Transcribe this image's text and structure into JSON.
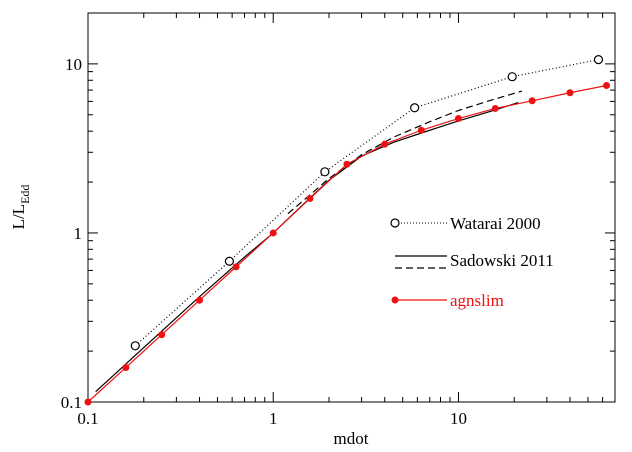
{
  "chart_data": {
    "type": "line",
    "title": "",
    "xlabel": "mdot",
    "ylabel": {
      "main": "L/L",
      "sub": "Edd"
    },
    "x_scale": "log",
    "y_scale": "log",
    "xlim": [
      0.1,
      70
    ],
    "ylim": [
      0.1,
      20
    ],
    "x_ticks": [
      {
        "value": 0.1,
        "label": "0.1"
      },
      {
        "value": 1,
        "label": "1"
      },
      {
        "value": 10,
        "label": "10"
      }
    ],
    "y_ticks": [
      {
        "value": 0.1,
        "label": "0.1"
      },
      {
        "value": 1,
        "label": "1"
      },
      {
        "value": 10,
        "label": "10"
      }
    ],
    "grid": false,
    "legend_position": "right-middle",
    "series": [
      {
        "name": "Watarai 2000",
        "color": "#000000",
        "line_style": "dotted",
        "marker": "open-circle",
        "x": [
          0.18,
          0.58,
          1.9,
          5.8,
          19.5,
          57
        ],
        "y": [
          0.215,
          0.68,
          2.3,
          5.5,
          8.4,
          10.6
        ]
      },
      {
        "name": "Sadowski 2011",
        "color": "#000000",
        "line_style": "solid",
        "marker": "none",
        "x": [
          0.11,
          0.2,
          0.4,
          0.7,
          1.0,
          1.4,
          2.0,
          3.0,
          4.5,
          7.0,
          10,
          15,
          21
        ],
        "y": [
          0.115,
          0.21,
          0.42,
          0.72,
          1.0,
          1.42,
          2.05,
          2.85,
          3.45,
          4.05,
          4.6,
          5.25,
          5.9
        ]
      },
      {
        "name": "",
        "color": "#000000",
        "line_style": "dashed",
        "marker": "none",
        "x": [
          1.2,
          1.6,
          2.0,
          3.0,
          4.5,
          7.0,
          10,
          15,
          22
        ],
        "y": [
          1.3,
          1.7,
          2.1,
          2.9,
          3.7,
          4.55,
          5.3,
          6.1,
          6.9
        ]
      },
      {
        "name": "agnslim",
        "color": "#ee1111",
        "line_style": "solid",
        "marker": "filled-circle",
        "x": [
          0.1,
          0.16,
          0.25,
          0.4,
          0.63,
          1.0,
          1.58,
          2.5,
          4.0,
          6.3,
          10,
          15.8,
          25,
          40,
          63
        ],
        "y": [
          0.1,
          0.16,
          0.25,
          0.4,
          0.63,
          1.0,
          1.6,
          2.55,
          3.35,
          4.05,
          4.75,
          5.45,
          6.05,
          6.75,
          7.45
        ]
      }
    ]
  }
}
